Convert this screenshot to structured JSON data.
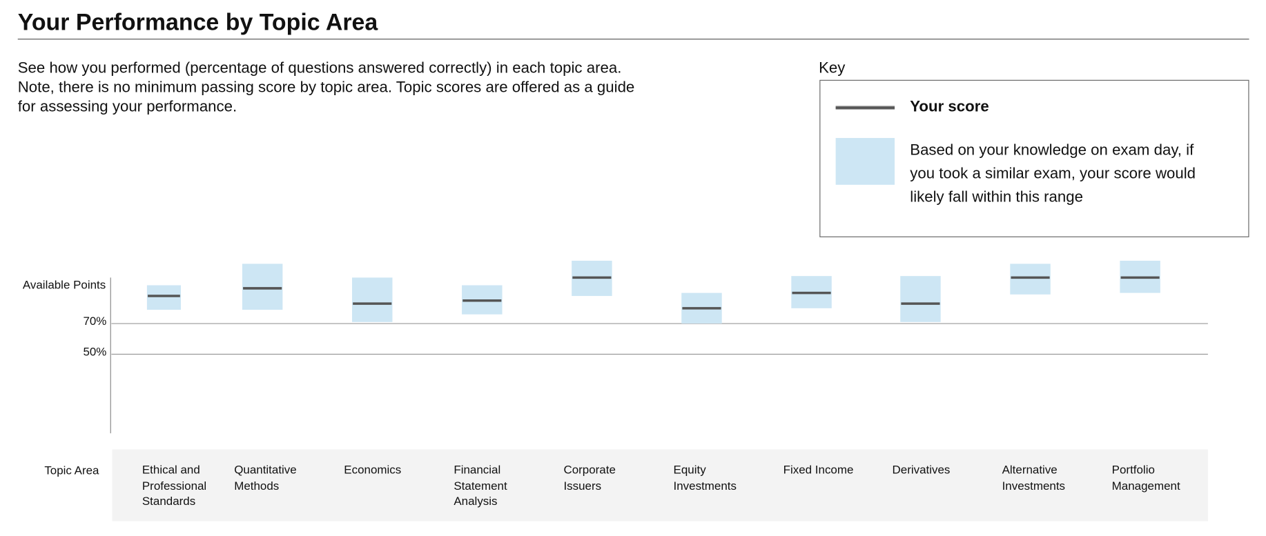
{
  "header": {
    "title": "Your Performance by Topic Area",
    "description": "See how you performed (percentage of questions answered correctly) in each topic area. Note, there is no minimum passing score by topic area. Topic scores are offered as a guide for assessing your performance."
  },
  "key": {
    "title": "Key",
    "score_label": "Your score",
    "range_label": "Based on your knowledge on exam day, if you took a similar exam, your score would likely fall within this range"
  },
  "chart_data": {
    "type": "range",
    "ylabel": "Available Points",
    "xlabel": "Topic Area",
    "categories": [
      "Ethical and Professional Standards",
      "Quantitative Methods",
      "Economics",
      "Financial Statement Analysis",
      "Corporate Issuers",
      "Equity Investments",
      "Fixed Income",
      "Derivatives",
      "Alternative Investments",
      "Portfolio Management"
    ],
    "values": [
      88,
      93,
      83,
      85,
      100,
      80,
      90,
      83,
      100,
      100
    ],
    "low": [
      79,
      79,
      71,
      76,
      88,
      70,
      80,
      71,
      89,
      90
    ],
    "high": [
      95,
      109,
      100,
      95,
      111,
      90,
      101,
      101,
      109,
      111
    ],
    "score_color": "#555555",
    "range_color": "#cde6f4",
    "ylim": [
      0,
      100
    ],
    "yticks": [
      {
        "value": 70,
        "label": "70%"
      },
      {
        "value": 50,
        "label": "50%"
      }
    ],
    "grid": true
  }
}
